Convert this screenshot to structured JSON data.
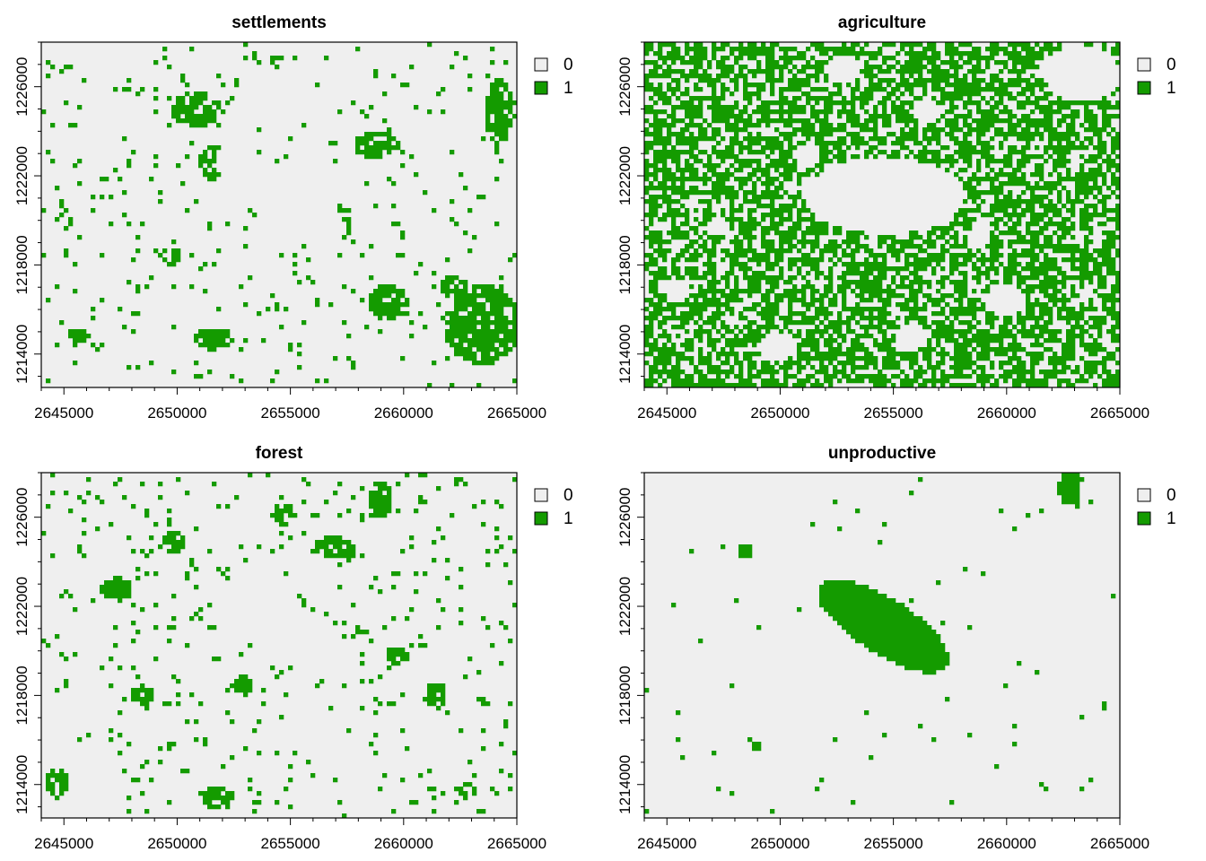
{
  "chart_data": [
    {
      "type": "heatmap",
      "title": "settlements",
      "xlim": [
        2644000,
        2665000
      ],
      "ylim": [
        1212500,
        1228000
      ],
      "x_ticks": [
        "2645000",
        "2650000",
        "2655000",
        "2660000",
        "2665000"
      ],
      "y_ticks": [
        "1214000",
        "1218000",
        "1222000",
        "1226000"
      ],
      "legend": [
        {
          "label": "0",
          "color": "#efefef"
        },
        {
          "label": "1",
          "color": "#149b00"
        }
      ],
      "values": [
        0,
        1
      ],
      "grid": false,
      "legend_placement": "top-right, outside plot"
    },
    {
      "type": "heatmap",
      "title": "agriculture",
      "xlim": [
        2644000,
        2665000
      ],
      "ylim": [
        1212500,
        1228000
      ],
      "x_ticks": [
        "2645000",
        "2650000",
        "2655000",
        "2660000",
        "2665000"
      ],
      "y_ticks": [
        "1214000",
        "1218000",
        "1222000",
        "1226000"
      ],
      "legend": [
        {
          "label": "0",
          "color": "#efefef"
        },
        {
          "label": "1",
          "color": "#149b00"
        }
      ],
      "values": [
        0,
        1
      ],
      "grid": false,
      "legend_placement": "top-right, outside plot"
    },
    {
      "type": "heatmap",
      "title": "forest",
      "xlim": [
        2644000,
        2665000
      ],
      "ylim": [
        1212500,
        1228000
      ],
      "x_ticks": [
        "2645000",
        "2650000",
        "2655000",
        "2660000",
        "2665000"
      ],
      "y_ticks": [
        "1214000",
        "1218000",
        "1222000",
        "1226000"
      ],
      "legend": [
        {
          "label": "0",
          "color": "#efefef"
        },
        {
          "label": "1",
          "color": "#149b00"
        }
      ],
      "values": [
        0,
        1
      ],
      "grid": false,
      "legend_placement": "top-right, outside plot"
    },
    {
      "type": "heatmap",
      "title": "unproductive",
      "xlim": [
        2644000,
        2665000
      ],
      "ylim": [
        1212500,
        1228000
      ],
      "x_ticks": [
        "2645000",
        "2650000",
        "2655000",
        "2660000",
        "2665000"
      ],
      "y_ticks": [
        "1214000",
        "1218000",
        "1222000",
        "1226000"
      ],
      "legend": [
        {
          "label": "0",
          "color": "#efefef"
        },
        {
          "label": "1",
          "color": "#149b00"
        }
      ],
      "values": [
        0,
        1
      ],
      "grid": false,
      "legend_placement": "top-right, outside plot"
    }
  ]
}
